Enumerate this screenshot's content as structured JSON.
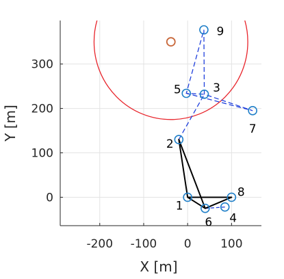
{
  "chart_data": {
    "type": "scatter",
    "xlabel": "X [m]",
    "ylabel": "Y [m]",
    "xlim": [
      -290,
      168
    ],
    "ylim": [
      -64,
      398
    ],
    "xticks": [
      -200,
      -100,
      0,
      100
    ],
    "xtick_labels": [
      "-200",
      "-100",
      "0",
      "100"
    ],
    "yticks": [
      0,
      100,
      200,
      300
    ],
    "ytick_labels": [
      "0",
      "100",
      "200",
      "300"
    ],
    "grid": true,
    "points": [
      {
        "label": "1",
        "x": 0,
        "y": 0
      },
      {
        "label": "2",
        "x": -20,
        "y": 130
      },
      {
        "label": "3",
        "x": 38,
        "y": 232
      },
      {
        "label": "4",
        "x": 85,
        "y": -22
      },
      {
        "label": "5",
        "x": -3,
        "y": 234
      },
      {
        "label": "6",
        "x": 40,
        "y": -25
      },
      {
        "label": "7",
        "x": 148,
        "y": 195
      },
      {
        "label": "8",
        "x": 100,
        "y": 0
      },
      {
        "label": "9",
        "x": 37,
        "y": 377
      }
    ],
    "solid_path": {
      "color": "#000000",
      "sequence": [
        "2",
        "1",
        "6",
        "8",
        "1",
        "2",
        "6"
      ]
    },
    "dashed_path": {
      "color": "#1f3fdc",
      "sequence": [
        "2",
        "3",
        "5",
        "9",
        "3",
        "7",
        "5"
      ]
    },
    "dashed_extra": {
      "color": "#1f3fdc",
      "sequence": [
        "6",
        "4"
      ]
    },
    "circle": {
      "cx": -38,
      "cy": 350,
      "r": 175,
      "color": "#e8232a"
    },
    "target": {
      "x": -38,
      "y": 350,
      "color": "#c8673a"
    },
    "marker_color": "#1f7fc8"
  }
}
